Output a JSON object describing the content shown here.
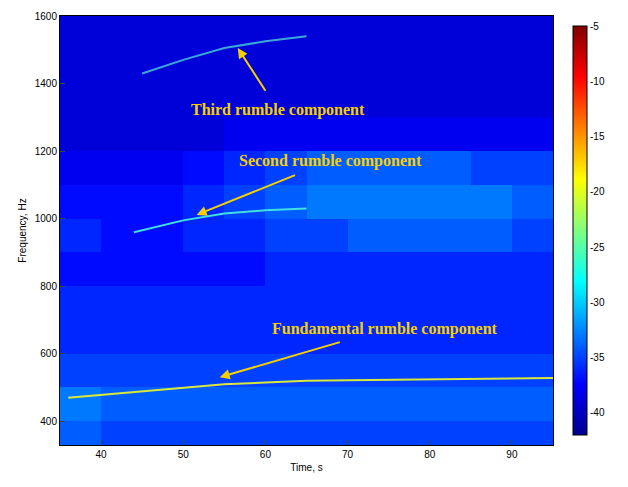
{
  "chart_data": {
    "type": "spectrogram",
    "x_label": "Time, s",
    "y_label": "Frequency, Hz",
    "xlim": [
      35,
      95
    ],
    "xticks": [
      40,
      50,
      60,
      70,
      80,
      90
    ],
    "ylim": [
      330,
      1600
    ],
    "yticks": [
      400,
      600,
      800,
      1000,
      1200,
      1400,
      1600
    ],
    "colorbar": {
      "range": [
        -42,
        -5
      ],
      "ticks": [
        -5,
        -10,
        -15,
        -20,
        -25,
        -30,
        -35,
        -40
      ]
    },
    "cells": {
      "x": [
        37.5,
        42.5,
        47.5,
        52.5,
        57.5,
        62.5,
        67.5,
        72.5,
        77.5,
        82.5,
        87.5,
        92.5
      ],
      "y": [
        350,
        450,
        550,
        650,
        750,
        850,
        950,
        1050,
        1150,
        1250,
        1350,
        1450,
        1550
      ],
      "z": [
        [
          -34,
          -35,
          -35,
          -35,
          -35,
          -35,
          -35,
          -35,
          -35,
          -35,
          -35,
          -35
        ],
        [
          -33,
          -34,
          -34,
          -34,
          -34,
          -34,
          -34,
          -34,
          -34,
          -34,
          -34,
          -34
        ],
        [
          -35,
          -35,
          -35,
          -35,
          -35,
          -35,
          -35,
          -35,
          -35,
          -35,
          -35,
          -35
        ],
        [
          -36,
          -36,
          -36,
          -36,
          -36,
          -36,
          -36,
          -36,
          -36,
          -36,
          -36,
          -36
        ],
        [
          -36,
          -36,
          -36,
          -36,
          -36,
          -36,
          -36,
          -36,
          -36,
          -36,
          -36,
          -36
        ],
        [
          -37,
          -37,
          -37,
          -37,
          -37,
          -36,
          -36,
          -36,
          -36,
          -36,
          -36,
          -36
        ],
        [
          -36,
          -37,
          -37,
          -36,
          -36,
          -35,
          -35,
          -34,
          -34,
          -34,
          -34,
          -35
        ],
        [
          -37,
          -37,
          -37,
          -36,
          -35,
          -34,
          -33,
          -33,
          -33,
          -33,
          -33,
          -34
        ],
        [
          -38,
          -38,
          -38,
          -37,
          -36,
          -35,
          -34,
          -34,
          -34,
          -34,
          -35,
          -35
        ],
        [
          -39,
          -39,
          -39,
          -39,
          -38,
          -38,
          -38,
          -38,
          -38,
          -38,
          -38,
          -38
        ],
        [
          -39,
          -39,
          -39,
          -39,
          -39,
          -39,
          -39,
          -39,
          -39,
          -39,
          -39,
          -39
        ],
        [
          -39,
          -39,
          -39,
          -39,
          -39,
          -39,
          -39,
          -39,
          -39,
          -39,
          -39,
          -39
        ],
        [
          -39,
          -39,
          -39,
          -39,
          -39,
          -39,
          -39,
          -39,
          -39,
          -39,
          -39,
          -39
        ]
      ]
    },
    "series": [
      {
        "color": "#d8e83a",
        "x": [
          36,
          40,
          45,
          50,
          55,
          60,
          65,
          70,
          80,
          90,
          95
        ],
        "values": [
          470,
          478,
          490,
          500,
          510,
          515,
          520,
          522,
          525,
          528,
          528
        ]
      },
      {
        "color": "#40e0e0",
        "x": [
          44,
          50,
          55,
          60,
          65
        ],
        "values": [
          960,
          995,
          1015,
          1025,
          1030
        ]
      },
      {
        "color": "#3aa8d8",
        "x": [
          45,
          50,
          55,
          60,
          65
        ],
        "values": [
          1430,
          1470,
          1505,
          1525,
          1540
        ]
      }
    ],
    "annotations": [
      {
        "text": "Third rumble component",
        "x": 56.5,
        "y": 1510,
        "text_x": 61.5,
        "text_y": 1323
      },
      {
        "text": "Second rumble component",
        "x": 51.4,
        "y": 1009,
        "text_x": 67.9,
        "text_y": 1171
      },
      {
        "text": "Fundamental rumble component",
        "x": 54.2,
        "y": 529,
        "text_x": 74.6,
        "text_y": 674
      }
    ]
  }
}
